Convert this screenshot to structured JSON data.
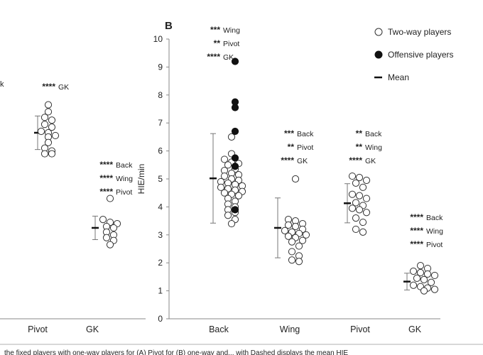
{
  "panel_label": "B",
  "y_axis_title": "HIE/min",
  "legend": {
    "two_way": "Two-way players",
    "offensive": "Offensive players",
    "mean": "Mean"
  },
  "caption_fragment": "the fixed players with one-way players for (A) Pivot for (B) one-way and... with Dashed displays the mean HIE",
  "colors": {
    "axis": "#888888",
    "marker_edge": "#333333",
    "error_bar": "#777777"
  },
  "chart_data": [
    {
      "panel": "A",
      "type": "scatter",
      "note": "left panel, cropped in the image",
      "categories": [
        "Pivot",
        "GK"
      ],
      "y_range": [
        0,
        10
      ],
      "groups": [
        {
          "category": "Pivot",
          "mean": 6.65,
          "sd": 0.6,
          "two_way": [
            7.65,
            7.4,
            7.2,
            7.1,
            6.95,
            6.85,
            6.7,
            6.65,
            6.55,
            6.5,
            6.3,
            6.1,
            6.0,
            5.9,
            5.9
          ],
          "offensive": [],
          "annotations": [
            {
              "stars": "****",
              "label": "GK"
            }
          ]
        },
        {
          "category": "GK",
          "mean": 3.25,
          "sd": 0.42,
          "two_way": [
            4.3,
            3.55,
            3.45,
            3.4,
            3.3,
            3.25,
            3.1,
            3.0,
            2.9,
            2.8,
            2.65
          ],
          "offensive": [],
          "annotations": [
            {
              "stars": "****",
              "label": "Back"
            },
            {
              "stars": "****",
              "label": "Wing"
            },
            {
              "stars": "****",
              "label": "Pivot"
            }
          ]
        }
      ],
      "cropped_text": [
        "k"
      ]
    },
    {
      "panel": "B",
      "type": "scatter",
      "categories": [
        "Back",
        "Wing",
        "Pivot",
        "GK"
      ],
      "ylabel": "HIE/min",
      "y_range": [
        0,
        10
      ],
      "y_ticks": [
        0,
        1,
        2,
        3,
        4,
        5,
        6,
        7,
        8,
        9,
        10
      ],
      "groups": [
        {
          "category": "Back",
          "mean": 5.02,
          "sd": 1.6,
          "two_way": [
            6.5,
            5.9,
            5.7,
            5.6,
            5.55,
            5.5,
            5.35,
            5.3,
            5.2,
            5.15,
            5.1,
            5.0,
            4.95,
            4.9,
            4.85,
            4.8,
            4.75,
            4.7,
            4.65,
            4.6,
            4.55,
            4.5,
            4.45,
            4.4,
            4.3,
            4.2,
            4.1,
            4.0,
            3.9,
            3.8,
            3.7,
            3.55,
            3.4
          ],
          "offensive": [
            9.2,
            7.75,
            7.55,
            6.7,
            5.75,
            5.45,
            3.9
          ],
          "annotations": [
            {
              "stars": "***",
              "label": "Wing"
            },
            {
              "stars": "**",
              "label": "Pivot"
            },
            {
              "stars": "****",
              "label": "GK"
            }
          ]
        },
        {
          "category": "Wing",
          "mean": 3.25,
          "sd": 1.07,
          "two_way": [
            5.0,
            3.55,
            3.5,
            3.4,
            3.35,
            3.3,
            3.2,
            3.15,
            3.1,
            3.05,
            3.0,
            2.95,
            2.9,
            2.8,
            2.75,
            2.6,
            2.4,
            2.25,
            2.1,
            2.05
          ],
          "offensive": [],
          "annotations": [
            {
              "stars": "***",
              "label": "Back"
            },
            {
              "stars": "**",
              "label": "Pivot"
            },
            {
              "stars": "****",
              "label": "GK"
            }
          ]
        },
        {
          "category": "Pivot",
          "mean": 4.13,
          "sd": 0.7,
          "two_way": [
            5.1,
            5.05,
            4.95,
            4.85,
            4.7,
            4.45,
            4.4,
            4.3,
            4.15,
            4.05,
            3.95,
            3.9,
            3.8,
            3.6,
            3.45,
            3.2,
            3.1
          ],
          "offensive": [],
          "annotations": [
            {
              "stars": "**",
              "label": "Back"
            },
            {
              "stars": "**",
              "label": "Wing"
            },
            {
              "stars": "****",
              "label": "GK"
            }
          ]
        },
        {
          "category": "GK",
          "mean": 1.33,
          "sd": 0.3,
          "two_way": [
            1.9,
            1.8,
            1.7,
            1.65,
            1.6,
            1.55,
            1.45,
            1.4,
            1.3,
            1.2,
            1.15,
            1.1,
            1.05,
            1.0
          ],
          "offensive": [],
          "annotations": [
            {
              "stars": "****",
              "label": "Back"
            },
            {
              "stars": "****",
              "label": "Wing"
            },
            {
              "stars": "****",
              "label": "Pivot"
            }
          ]
        }
      ],
      "legend": [
        "Two-way players",
        "Offensive players",
        "Mean"
      ],
      "legend_position": "top-right",
      "grid": false
    }
  ]
}
